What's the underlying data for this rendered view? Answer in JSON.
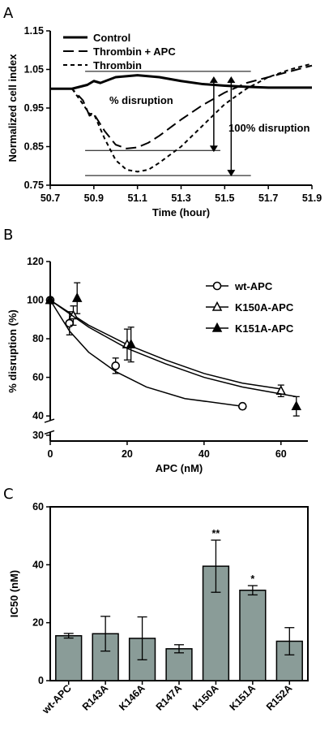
{
  "panels": {
    "A": "A",
    "B": "B",
    "C": "C"
  },
  "chart_data": [
    {
      "type": "line",
      "xlabel": "Time (hour)",
      "ylabel": "Normalized cell index",
      "xlim": [
        50.7,
        51.9
      ],
      "ylim": [
        0.75,
        1.15
      ],
      "xticks": [
        "50.7",
        "50.9",
        "51.1",
        "51.3",
        "51.5",
        "51.7",
        "51.9"
      ],
      "yticks": [
        "0.75",
        "0.85",
        "0.95",
        "1.05",
        "1.15"
      ],
      "legend_position": "top-left",
      "series": [
        {
          "name": "Control",
          "style": "solid",
          "x": [
            50.7,
            50.8,
            50.87,
            50.9,
            50.93,
            51.0,
            51.1,
            51.2,
            51.3,
            51.4,
            51.5,
            51.6,
            51.7,
            51.8,
            51.9
          ],
          "y": [
            1.0,
            1.0,
            1.01,
            1.02,
            1.015,
            1.03,
            1.035,
            1.03,
            1.02,
            1.012,
            1.008,
            1.005,
            1.003,
            1.003,
            1.003
          ]
        },
        {
          "name": "Thrombin + APC",
          "style": "dashed",
          "x": [
            50.7,
            50.8,
            50.85,
            50.88,
            50.9,
            50.95,
            51.0,
            51.05,
            51.1,
            51.15,
            51.2,
            51.3,
            51.4,
            51.5,
            51.6,
            51.7,
            51.8,
            51.9
          ],
          "y": [
            1.0,
            1.0,
            0.97,
            0.93,
            0.935,
            0.89,
            0.855,
            0.845,
            0.848,
            0.86,
            0.878,
            0.92,
            0.958,
            0.99,
            1.015,
            1.03,
            1.045,
            1.06
          ]
        },
        {
          "name": "Thrombin",
          "style": "dotted",
          "x": [
            50.7,
            50.8,
            50.85,
            50.88,
            50.9,
            50.95,
            51.0,
            51.05,
            51.1,
            51.15,
            51.2,
            51.3,
            51.4,
            51.5,
            51.6,
            51.7,
            51.8,
            51.9
          ],
          "y": [
            1.0,
            1.0,
            0.96,
            0.935,
            0.935,
            0.87,
            0.815,
            0.79,
            0.785,
            0.79,
            0.808,
            0.85,
            0.905,
            0.96,
            1.0,
            1.03,
            1.05,
            1.065
          ]
        }
      ],
      "annotations": {
        "partial": "% disruption",
        "full": "100% disruption"
      }
    },
    {
      "type": "scatter",
      "xlabel": "APC (nM)",
      "ylabel": "% disruption (%)",
      "xlim": [
        0,
        67
      ],
      "ylim": [
        27,
        120
      ],
      "xticks": [
        "0",
        "20",
        "40",
        "60"
      ],
      "yticks": [
        "30",
        "40",
        "60",
        "80",
        "100",
        "120"
      ],
      "legend_position": "top-right",
      "series": [
        {
          "name": "wt-APC",
          "marker": "open-circle",
          "x": [
            0,
            5,
            17,
            50
          ],
          "y": [
            100,
            88,
            66,
            45
          ],
          "err": [
            0,
            6,
            4,
            0
          ],
          "fit_x": [
            0,
            5,
            10,
            17,
            25,
            35,
            50
          ],
          "fit_y": [
            100,
            84,
            73,
            63,
            55,
            49,
            45
          ]
        },
        {
          "name": "K150A-APC",
          "marker": "open-triangle",
          "x": [
            0,
            6,
            20,
            60
          ],
          "y": [
            100,
            92,
            77,
            53
          ],
          "err": [
            0,
            5,
            8,
            3
          ],
          "fit_x": [
            0,
            10,
            20,
            30,
            40,
            50,
            60
          ],
          "fit_y": [
            100,
            87,
            77,
            69,
            62,
            57,
            54
          ]
        },
        {
          "name": "K151A-APC",
          "marker": "filled-triangle",
          "x": [
            0,
            7,
            21,
            64
          ],
          "y": [
            100,
            101,
            77,
            45
          ],
          "err": [
            0,
            8,
            9,
            5
          ],
          "fit_x": [
            0,
            10,
            20,
            30,
            40,
            50,
            64
          ],
          "fit_y": [
            100,
            86,
            75,
            67,
            60,
            55,
            50
          ]
        }
      ]
    },
    {
      "type": "bar",
      "ylabel": "IC50 (nM)",
      "ylim": [
        0,
        60
      ],
      "yticks": [
        "0",
        "20",
        "40",
        "60"
      ],
      "categories": [
        "wt-APC",
        "R143A",
        "K146A",
        "R147A",
        "K150A",
        "K151A",
        "R152A"
      ],
      "values": [
        15.5,
        16.2,
        14.6,
        11.0,
        39.5,
        31.2,
        13.6
      ],
      "err": [
        0.8,
        6.0,
        7.4,
        1.4,
        9.0,
        1.6,
        4.7
      ],
      "significance": [
        "",
        "",
        "",
        "",
        "**",
        "*",
        ""
      ],
      "bar_color": "#8a9c98"
    }
  ]
}
